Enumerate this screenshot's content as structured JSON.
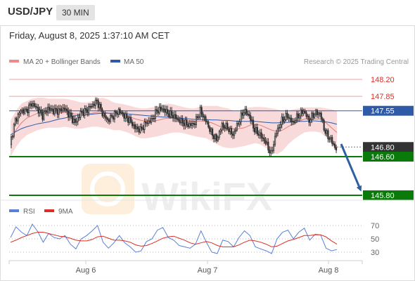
{
  "header": {
    "symbol": "USD/JPY",
    "timeframe": "30 MIN"
  },
  "timestamp": "Friday, August 8, 2025 1:37:10 AM CET",
  "legend": {
    "ma20_label": "MA 20 + Bollinger Bands",
    "ma50_label": "MA 50",
    "rsi_label": "RSI",
    "rsi_ma_label": "9MA"
  },
  "credit": "Research © 2025 Trading Central",
  "watermark": "WikiFX",
  "colors": {
    "resistance": "#d93025",
    "support": "#0a7a0a",
    "ma50": "#2f5aa8",
    "current": "#333333",
    "bullish": "#333333",
    "bearish": "#333333",
    "arrow": "#2f5fa3",
    "bollinger": "#f2bcbc",
    "rsi": "#5a7fd6",
    "rsi_ma": "#d93025"
  },
  "chart_data": [
    {
      "type": "candlestick",
      "title": "",
      "x_ticks": [
        "Aug 6",
        "Aug 7",
        "Aug 8"
      ],
      "ylim": [
        145.6,
        148.4
      ],
      "levels": [
        {
          "value": "148.20",
          "kind": "resistance"
        },
        {
          "value": "147.85",
          "kind": "resistance"
        },
        {
          "value": "147.55",
          "kind": "pivot"
        },
        {
          "value": "146.80",
          "kind": "current"
        },
        {
          "value": "146.60",
          "kind": "support"
        },
        {
          "value": "145.80",
          "kind": "support"
        }
      ],
      "forecast_target": 145.8,
      "close_path": [
        146.85,
        147.35,
        147.55,
        147.55,
        147.7,
        147.6,
        147.45,
        147.6,
        147.55,
        147.55,
        147.6,
        147.45,
        147.3,
        147.5,
        147.55,
        147.65,
        147.75,
        147.5,
        147.35,
        147.45,
        147.55,
        147.45,
        147.35,
        147.2,
        147.15,
        147.3,
        147.35,
        147.55,
        147.6,
        147.5,
        147.45,
        147.35,
        147.3,
        147.25,
        147.3,
        147.55,
        147.35,
        147.1,
        146.95,
        147.25,
        147.2,
        147.05,
        147.3,
        147.55,
        147.45,
        147.15,
        147.05,
        146.9,
        146.65,
        147.1,
        147.35,
        147.45,
        147.3,
        147.45,
        147.55,
        147.35,
        147.5,
        147.5,
        147.1,
        146.95,
        146.75
      ],
      "ma20": [
        146.95,
        147.15,
        147.3,
        147.4,
        147.45,
        147.5,
        147.5,
        147.5,
        147.5,
        147.5,
        147.52,
        147.5,
        147.48,
        147.47,
        147.48,
        147.5,
        147.52,
        147.53,
        147.5,
        147.47,
        147.47,
        147.45,
        147.42,
        147.38,
        147.35,
        147.33,
        147.33,
        147.35,
        147.38,
        147.4,
        147.4,
        147.38,
        147.36,
        147.34,
        147.33,
        147.34,
        147.33,
        147.3,
        147.25,
        147.2,
        147.2,
        147.18,
        147.18,
        147.2,
        147.25,
        147.27,
        147.25,
        147.2,
        147.15,
        147.12,
        147.15,
        147.22,
        147.28,
        147.33,
        147.38,
        147.38,
        147.38,
        147.38,
        147.3,
        147.2,
        147.1
      ],
      "ma50": [
        147.05,
        147.12,
        147.18,
        147.22,
        147.25,
        147.28,
        147.3,
        147.32,
        147.35,
        147.38,
        147.4,
        147.43,
        147.45,
        147.46,
        147.47,
        147.48,
        147.49,
        147.5,
        147.5,
        147.5,
        147.5,
        147.49,
        147.48,
        147.47,
        147.46,
        147.45,
        147.44,
        147.43,
        147.42,
        147.42,
        147.41,
        147.4,
        147.39,
        147.38,
        147.37,
        147.37,
        147.37,
        147.36,
        147.36,
        147.35,
        147.35,
        147.34,
        147.33,
        147.33,
        147.33,
        147.33,
        147.32,
        147.31,
        147.3,
        147.3,
        147.31,
        147.31,
        147.32,
        147.33,
        147.33,
        147.34,
        147.34,
        147.33,
        147.32,
        147.3,
        147.27
      ],
      "bb_upper": [
        147.35,
        147.55,
        147.7,
        147.75,
        147.8,
        147.82,
        147.82,
        147.8,
        147.8,
        147.8,
        147.8,
        147.78,
        147.75,
        147.72,
        147.72,
        147.75,
        147.8,
        147.82,
        147.78,
        147.72,
        147.7,
        147.68,
        147.65,
        147.62,
        147.6,
        147.6,
        147.62,
        147.65,
        147.68,
        147.7,
        147.68,
        147.65,
        147.62,
        147.6,
        147.6,
        147.65,
        147.65,
        147.65,
        147.65,
        147.62,
        147.6,
        147.55,
        147.55,
        147.6,
        147.62,
        147.63,
        147.63,
        147.62,
        147.6,
        147.58,
        147.55,
        147.55,
        147.58,
        147.6,
        147.62,
        147.62,
        147.62,
        147.62,
        147.6,
        147.58,
        147.55
      ],
      "bb_lower": [
        146.6,
        146.8,
        146.95,
        147.05,
        147.1,
        147.15,
        147.18,
        147.2,
        147.2,
        147.2,
        147.22,
        147.2,
        147.18,
        147.18,
        147.2,
        147.22,
        147.22,
        147.2,
        147.18,
        147.15,
        147.15,
        147.12,
        147.08,
        147.02,
        146.98,
        146.98,
        147.0,
        147.02,
        147.05,
        147.08,
        147.1,
        147.1,
        147.08,
        147.05,
        147.02,
        147.0,
        146.98,
        146.92,
        146.85,
        146.8,
        146.78,
        146.78,
        146.8,
        146.82,
        146.85,
        146.88,
        146.85,
        146.78,
        146.7,
        146.65,
        146.72,
        146.85,
        146.95,
        147.03,
        147.1,
        147.12,
        147.12,
        147.1,
        147.0,
        146.85,
        146.68
      ],
      "rsi_ticks": [
        70,
        50,
        30
      ],
      "rsi": [
        52,
        68,
        60,
        55,
        72,
        61,
        45,
        58,
        52,
        50,
        55,
        42,
        35,
        50,
        55,
        62,
        70,
        45,
        36,
        44,
        55,
        44,
        38,
        30,
        32,
        46,
        50,
        63,
        67,
        52,
        48,
        40,
        38,
        36,
        42,
        62,
        45,
        30,
        28,
        48,
        46,
        38,
        52,
        62,
        55,
        38,
        35,
        32,
        28,
        50,
        60,
        63,
        50,
        60,
        66,
        48,
        57,
        56,
        36,
        32,
        34
      ],
      "rsi_ma": [
        45,
        48,
        52,
        55,
        58,
        60,
        60,
        58,
        56,
        54,
        53,
        51,
        48,
        47,
        47,
        49,
        53,
        54,
        51,
        48,
        48,
        47,
        45,
        41,
        39,
        40,
        43,
        47,
        51,
        53,
        54,
        51,
        48,
        44,
        42,
        44,
        46,
        44,
        40,
        38,
        38,
        38,
        41,
        45,
        48,
        47,
        45,
        42,
        38,
        39,
        43,
        47,
        49,
        52,
        55,
        55,
        56,
        56,
        53,
        47,
        42
      ]
    }
  ]
}
